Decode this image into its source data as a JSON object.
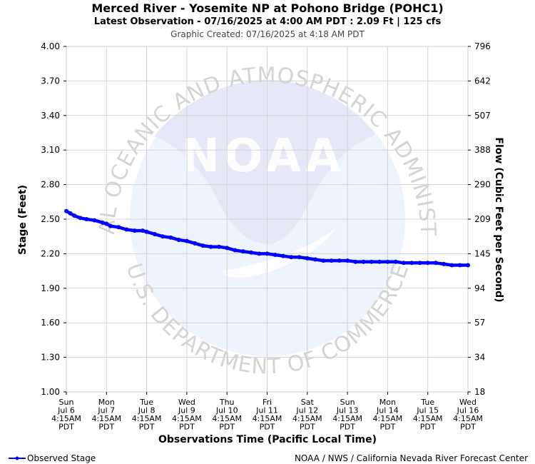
{
  "header": {
    "title": "Merced River - Yosemite NP at Pohono Bridge (POHC1)",
    "subtitle": "Latest Observation - 07/16/2025 at 4:00 AM PDT : 2.09 Ft | 125 cfs",
    "created": "Graphic Created: 07/16/2025 at 4:18 AM PDT"
  },
  "watermark": {
    "logo_text": "NOAA",
    "top_text": "NATIONAL OCEANIC AND ATMOSPHERIC ADMINISTRATION",
    "bottom_text": "U.S. DEPARTMENT OF COMMERCE"
  },
  "footer": {
    "legend_label": "Observed Stage",
    "credit": "NOAA / NWS / California Nevada River Forecast Center"
  },
  "colors": {
    "series": "#0000ff",
    "grid": "#d3d3d3"
  },
  "chart_data": {
    "type": "line",
    "ylabel": "Stage (Feet)",
    "y2label": "Flow (Cubic Feet per Second)",
    "xlabel": "Observations Time (Pacific Local Time)",
    "ylim": [
      1.0,
      4.0
    ],
    "yticks": [
      "4.00",
      "3.70",
      "3.40",
      "3.10",
      "2.80",
      "2.50",
      "2.20",
      "1.90",
      "1.60",
      "1.30",
      "1.00"
    ],
    "y2ticks": [
      "796",
      "642",
      "507",
      "388",
      "290",
      "209",
      "145",
      "94",
      "57",
      "34",
      "18"
    ],
    "xticks": [
      {
        "day": "Sun",
        "date": "Jul 6",
        "time": "4:15AM",
        "tz": "PDT"
      },
      {
        "day": "Mon",
        "date": "Jul 7",
        "time": "4:15AM",
        "tz": "PDT"
      },
      {
        "day": "Tue",
        "date": "Jul 8",
        "time": "4:15AM",
        "tz": "PDT"
      },
      {
        "day": "Wed",
        "date": "Jul 9",
        "time": "4:15AM",
        "tz": "PDT"
      },
      {
        "day": "Thu",
        "date": "Jul 10",
        "time": "4:15AM",
        "tz": "PDT"
      },
      {
        "day": "Fri",
        "date": "Jul 11",
        "time": "4:15AM",
        "tz": "PDT"
      },
      {
        "day": "Sat",
        "date": "Jul 12",
        "time": "4:15AM",
        "tz": "PDT"
      },
      {
        "day": "Sun",
        "date": "Jul 13",
        "time": "4:15AM",
        "tz": "PDT"
      },
      {
        "day": "Mon",
        "date": "Jul 14",
        "time": "4:15AM",
        "tz": "PDT"
      },
      {
        "day": "Tue",
        "date": "Jul 15",
        "time": "4:15AM",
        "tz": "PDT"
      },
      {
        "day": "Wed",
        "date": "Jul 16",
        "time": "4:15AM",
        "tz": "PDT"
      }
    ],
    "grid": true,
    "legend_position": "bottom-left",
    "series": [
      {
        "name": "Observed Stage",
        "x_unit": "days since first tick",
        "x": [
          0.0,
          0.1,
          0.2,
          0.35,
          0.5,
          0.7,
          0.9,
          1.0,
          1.1,
          1.3,
          1.5,
          1.7,
          1.9,
          2.0,
          2.2,
          2.4,
          2.6,
          2.8,
          3.0,
          3.2,
          3.4,
          3.6,
          3.8,
          4.0,
          4.2,
          4.4,
          4.6,
          4.8,
          5.0,
          5.2,
          5.4,
          5.6,
          5.8,
          6.0,
          6.2,
          6.4,
          6.6,
          6.8,
          7.0,
          7.2,
          7.4,
          7.6,
          7.8,
          8.0,
          8.2,
          8.4,
          8.6,
          8.8,
          9.0,
          9.2,
          9.4,
          9.6,
          9.8,
          10.0
        ],
        "values": [
          2.57,
          2.55,
          2.53,
          2.51,
          2.5,
          2.49,
          2.47,
          2.46,
          2.44,
          2.43,
          2.41,
          2.4,
          2.4,
          2.39,
          2.37,
          2.35,
          2.34,
          2.32,
          2.31,
          2.29,
          2.27,
          2.26,
          2.26,
          2.25,
          2.23,
          2.22,
          2.21,
          2.2,
          2.2,
          2.19,
          2.18,
          2.17,
          2.17,
          2.16,
          2.15,
          2.14,
          2.14,
          2.14,
          2.14,
          2.13,
          2.13,
          2.13,
          2.13,
          2.13,
          2.13,
          2.12,
          2.12,
          2.12,
          2.12,
          2.12,
          2.11,
          2.1,
          2.1,
          2.1
        ]
      }
    ]
  }
}
